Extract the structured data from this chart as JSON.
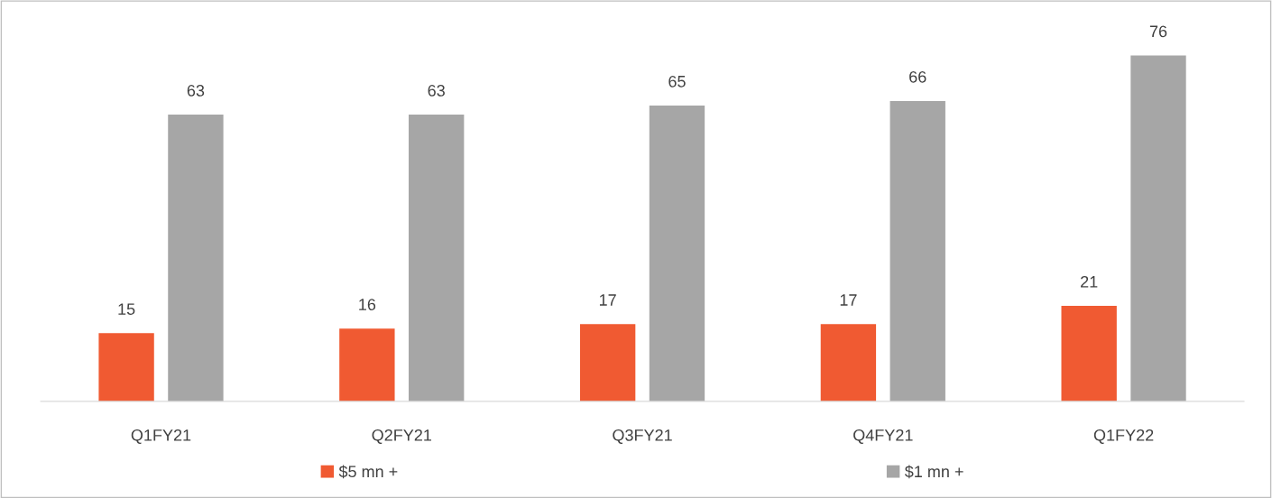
{
  "chart_data": {
    "type": "bar",
    "categories": [
      "Q1FY21",
      "Q2FY21",
      "Q3FY21",
      "Q4FY21",
      "Q1FY22"
    ],
    "series": [
      {
        "name": "$5 mn +",
        "color": "#f05a32",
        "values": [
          15,
          16,
          17,
          17,
          21
        ]
      },
      {
        "name": "$1 mn +",
        "color": "#a6a6a6",
        "values": [
          63,
          63,
          65,
          66,
          76
        ]
      }
    ],
    "data_labels": true,
    "legend": "bottom",
    "grid": false,
    "tick_labels": "x"
  }
}
